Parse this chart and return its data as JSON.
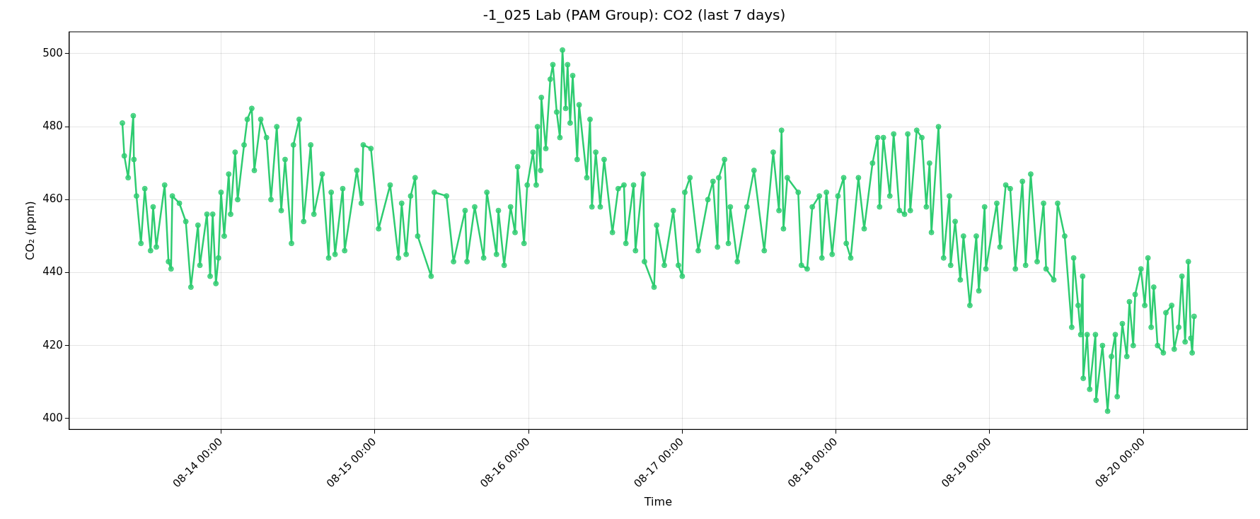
{
  "chart_data": {
    "type": "line",
    "title": "-1_025 Lab (PAM Group): CO2 (last 7 days)",
    "xlabel": "Time",
    "ylabel": "CO₂ (ppm)",
    "xlim": [
      "--08-13T00:18",
      "--08-20T16:12"
    ],
    "ylim": [
      397,
      506
    ],
    "xticks": [
      {
        "value": "--08-14T00:00",
        "label": "08-14 00:00"
      },
      {
        "value": "--08-15T00:00",
        "label": "08-15 00:00"
      },
      {
        "value": "--08-16T00:00",
        "label": "08-16 00:00"
      },
      {
        "value": "--08-17T00:00",
        "label": "08-17 00:00"
      },
      {
        "value": "--08-18T00:00",
        "label": "08-18 00:00"
      },
      {
        "value": "--08-19T00:00",
        "label": "08-19 00:00"
      },
      {
        "value": "--08-20T00:00",
        "label": "08-20 00:00"
      }
    ],
    "yticks": [
      400,
      420,
      440,
      460,
      480,
      500
    ],
    "grid": true,
    "marker": "circle",
    "line_style": "solid",
    "x": [
      "--08-13T08:36",
      "--08-13T08:54",
      "--08-13T09:30",
      "--08-13T10:18",
      "--08-13T10:24",
      "--08-13T10:48",
      "--08-13T11:30",
      "--08-13T12:06",
      "--08-13T13:00",
      "--08-13T13:24",
      "--08-13T13:54",
      "--08-13T15:12",
      "--08-13T15:48",
      "--08-13T16:12",
      "--08-13T16:24",
      "--08-13T17:30",
      "--08-13T18:30",
      "--08-13T19:18",
      "--08-13T20:24",
      "--08-13T20:42",
      "--08-13T21:48",
      "--08-13T22:18",
      "--08-13T22:42",
      "--08-13T23:12",
      "--08-13T23:36",
      "--08-14T00:00",
      "--08-14T00:30",
      "--08-14T01:12",
      "--08-14T01:30",
      "--08-14T02:12",
      "--08-14T02:36",
      "--08-14T03:36",
      "--08-14T04:06",
      "--08-14T04:48",
      "--08-14T05:12",
      "--08-14T06:12",
      "--08-14T07:06",
      "--08-14T07:48",
      "--08-14T08:42",
      "--08-14T09:24",
      "--08-14T10:00",
      "--08-14T11:00",
      "--08-14T11:18",
      "--08-14T12:12",
      "--08-14T12:54",
      "--08-14T14:00",
      "--08-14T14:30",
      "--08-14T15:48",
      "--08-14T16:48",
      "--08-14T17:12",
      "--08-14T17:48",
      "--08-14T19:00",
      "--08-14T19:18",
      "--08-14T21:12",
      "--08-14T21:54",
      "--08-14T22:12",
      "--08-14T23:24",
      "--08-15T00:36",
      "--08-15T02:24",
      "--08-15T03:42",
      "--08-15T04:12",
      "--08-15T04:54",
      "--08-15T05:36",
      "--08-15T06:18",
      "--08-15T06:42",
      "--08-15T08:48",
      "--08-15T09:18",
      "--08-15T11:12",
      "--08-15T12:18",
      "--08-15T14:06",
      "--08-15T14:24",
      "--08-15T15:36",
      "--08-15T17:00",
      "--08-15T17:30",
      "--08-15T19:00",
      "--08-15T19:18",
      "--08-15T20:12",
      "--08-15T21:12",
      "--08-15T21:54",
      "--08-15T22:18",
      "--08-15T23:18",
      "--08-15T23:48",
      "--08-16T00:42",
      "--08-16T01:12",
      "--08-16T01:24",
      "--08-16T01:54",
      "--08-16T02:00",
      "--08-16T02:42",
      "--08-16T03:24",
      "--08-16T03:48",
      "--08-16T04:24",
      "--08-16T04:54",
      "--08-16T05:18",
      "--08-16T05:48",
      "--08-16T06:06",
      "--08-16T06:30",
      "--08-16T06:54",
      "--08-16T07:36",
      "--08-16T07:54",
      "--08-16T09:06",
      "--08-16T09:36",
      "--08-16T09:54",
      "--08-16T10:30",
      "--08-16T11:12",
      "--08-16T11:48",
      "--08-16T13:06",
      "--08-16T14:00",
      "--08-16T14:54",
      "--08-16T15:12",
      "--08-16T16:24",
      "--08-16T16:42",
      "--08-16T17:54",
      "--08-16T18:06",
      "--08-16T19:36",
      "--08-16T20:00",
      "--08-16T21:12",
      "--08-16T22:36",
      "--08-16T23:24",
      "--08-17T00:00",
      "--08-17T00:24",
      "--08-17T01:12",
      "--08-17T02:30",
      "--08-17T04:00",
      "--08-17T04:48",
      "--08-17T05:30",
      "--08-17T05:42",
      "--08-17T06:36",
      "--08-17T07:12",
      "--08-17T07:30",
      "--08-17T08:36",
      "--08-17T10:06",
      "--08-17T11:12",
      "--08-17T12:48",
      "--08-17T14:12",
      "--08-17T15:06",
      "--08-17T15:30",
      "--08-17T15:48",
      "--08-17T16:24",
      "--08-17T18:06",
      "--08-17T18:36",
      "--08-17T19:30",
      "--08-17T20:18",
      "--08-17T21:24",
      "--08-17T21:48",
      "--08-17T22:30",
      "--08-17T23:24",
      "--08-18T00:18",
      "--08-18T01:12",
      "--08-18T01:36",
      "--08-18T02:18",
      "--08-18T03:30",
      "--08-18T04:24",
      "--08-18T05:42",
      "--08-18T06:30",
      "--08-18T06:48",
      "--08-18T07:24",
      "--08-18T08:24",
      "--08-18T09:00",
      "--08-18T09:54",
      "--08-18T10:42",
      "--08-18T11:12",
      "--08-18T11:36",
      "--08-18T12:36",
      "--08-18T13:24",
      "--08-18T14:06",
      "--08-18T14:36",
      "--08-18T14:54",
      "--08-18T16:00",
      "--08-18T16:48",
      "--08-18T17:42",
      "--08-18T17:54",
      "--08-18T18:36",
      "--08-18T19:24",
      "--08-18T19:54",
      "--08-18T20:54",
      "--08-18T21:54",
      "--08-18T22:18",
      "--08-18T23:12",
      "--08-18T23:24",
      "--08-19T01:06",
      "--08-19T01:36",
      "--08-19T02:30",
      "--08-19T03:12",
      "--08-19T04:00",
      "--08-19T05:06",
      "--08-19T05:36",
      "--08-19T06:24",
      "--08-19T07:24",
      "--08-19T08:24",
      "--08-19T08:48",
      "--08-19T10:00",
      "--08-19T10:36",
      "--08-19T11:42",
      "--08-19T12:48",
      "--08-19T13:06",
      "--08-19T13:48",
      "--08-19T14:12",
      "--08-19T14:30",
      "--08-19T14:36",
      "--08-19T15:12",
      "--08-19T15:36",
      "--08-19T16:30",
      "--08-19T16:36",
      "--08-19T17:36",
      "--08-19T18:24",
      "--08-19T19:00",
      "--08-19T19:36",
      "--08-19T19:54",
      "--08-19T20:42",
      "--08-19T21:24",
      "--08-19T21:48",
      "--08-19T22:24",
      "--08-19T22:42",
      "--08-19T23:36",
      "--08-20T00:12",
      "--08-20T00:42",
      "--08-20T01:12",
      "--08-20T01:36",
      "--08-20T02:12",
      "--08-20T03:06",
      "--08-20T03:30",
      "--08-20T04:24",
      "--08-20T04:48",
      "--08-20T05:30",
      "--08-20T06:00",
      "--08-20T06:30",
      "--08-20T07:00",
      "--08-20T07:24",
      "--08-20T07:36",
      "--08-20T07:54"
    ],
    "series": [
      {
        "color": "#2ecc71",
        "values": [
          481,
          472,
          466,
          483,
          471,
          461,
          448,
          463,
          446,
          458,
          447,
          464,
          443,
          441,
          461,
          459,
          454,
          436,
          453,
          442,
          456,
          439,
          456,
          437,
          444,
          462,
          450,
          467,
          456,
          473,
          460,
          475,
          482,
          485,
          468,
          482,
          477,
          460,
          480,
          457,
          471,
          448,
          475,
          482,
          454,
          475,
          456,
          467,
          444,
          462,
          445,
          463,
          446,
          468,
          459,
          475,
          474,
          452,
          464,
          444,
          459,
          445,
          461,
          466,
          450,
          439,
          462,
          461,
          443,
          457,
          443,
          458,
          444,
          462,
          445,
          457,
          442,
          458,
          451,
          469,
          448,
          464,
          473,
          464,
          480,
          468,
          488,
          474,
          493,
          497,
          484,
          477,
          501,
          485,
          497,
          481,
          494,
          471,
          486,
          466,
          482,
          458,
          473,
          458,
          471,
          451,
          463,
          464,
          448,
          464,
          446,
          467,
          443,
          436,
          453,
          442,
          457,
          442,
          439,
          462,
          466,
          446,
          460,
          465,
          447,
          466,
          471,
          448,
          458,
          443,
          458,
          468,
          446,
          473,
          457,
          479,
          452,
          466,
          462,
          442,
          441,
          458,
          461,
          444,
          462,
          445,
          461,
          466,
          448,
          444,
          466,
          452,
          470,
          477,
          458,
          477,
          461,
          478,
          457,
          456,
          478,
          457,
          479,
          477,
          458,
          470,
          451,
          480,
          444,
          461,
          442,
          454,
          438,
          450,
          431,
          450,
          435,
          458,
          441,
          459,
          447,
          464,
          463,
          441,
          465,
          442,
          467,
          443,
          459,
          441,
          438,
          459,
          450,
          425,
          444,
          431,
          423,
          439,
          411,
          423,
          408,
          423,
          405,
          420,
          402,
          417,
          423,
          406,
          426,
          417,
          432,
          420,
          434,
          441,
          431,
          444,
          425,
          436,
          420,
          418,
          429,
          431,
          419,
          425,
          439,
          421,
          443,
          422,
          418,
          428
        ]
      }
    ]
  }
}
